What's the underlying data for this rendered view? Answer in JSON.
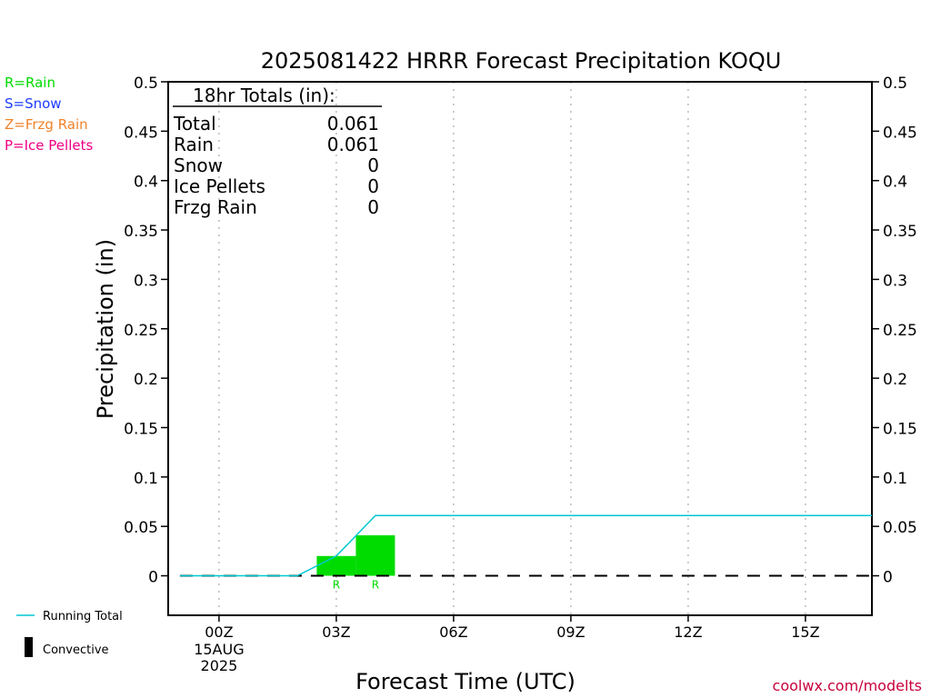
{
  "chart_data": {
    "type": "bar",
    "title": "2025081422 HRRR Forecast Precipitation KOQU",
    "xlabel": "Forecast Time (UTC)",
    "ylabel": "Precipitation (in)",
    "ylim": [
      -0.04,
      0.5
    ],
    "xlim_hours": [
      -1.3,
      16.7
    ],
    "y_ticks": [
      "0",
      "0.05",
      "0.1",
      "0.15",
      "0.2",
      "0.25",
      "0.3",
      "0.35",
      "0.4",
      "0.45",
      "0.5"
    ],
    "y_tick_values": [
      0,
      0.05,
      0.1,
      0.15,
      0.2,
      0.25,
      0.3,
      0.35,
      0.4,
      0.45,
      0.5
    ],
    "x_ticks": [
      {
        "hour": 0,
        "label": "00Z",
        "sub1": "15AUG",
        "sub2": "2025"
      },
      {
        "hour": 3,
        "label": "03Z",
        "sub1": "",
        "sub2": ""
      },
      {
        "hour": 6,
        "label": "06Z",
        "sub1": "",
        "sub2": ""
      },
      {
        "hour": 9,
        "label": "09Z",
        "sub1": "",
        "sub2": ""
      },
      {
        "hour": 12,
        "label": "12Z",
        "sub1": "",
        "sub2": ""
      },
      {
        "hour": 15,
        "label": "15Z",
        "sub1": "",
        "sub2": ""
      }
    ],
    "grid": "vertical dotted",
    "bars": [
      {
        "start_hour": 2.5,
        "end_hour": 3.5,
        "value": 0.02,
        "type_label": "R",
        "color": "#00dc00"
      },
      {
        "start_hour": 3.5,
        "end_hour": 4.5,
        "value": 0.041,
        "type_label": "R",
        "color": "#00dc00"
      }
    ],
    "series": [
      {
        "name": "Running Total",
        "color": "#00c8d2",
        "x": [
          -1,
          2,
          3,
          4,
          16.7
        ],
        "values": [
          0,
          0,
          0.02,
          0.061,
          0.061
        ]
      }
    ],
    "baseline_color": "#000000"
  },
  "totals": {
    "header": "18hr Totals (in):",
    "rows": [
      {
        "label": "Total",
        "value": "0.061"
      },
      {
        "label": "Rain",
        "value": "0.061"
      },
      {
        "label": "Snow",
        "value": "0"
      },
      {
        "label": "Ice Pellets",
        "value": "0"
      },
      {
        "label": "Frzg Rain",
        "value": "0"
      }
    ]
  },
  "type_legend": [
    {
      "label": "R=Rain",
      "color": "#00dc00"
    },
    {
      "label": "S=Snow",
      "color": "#1e3cff"
    },
    {
      "label": "Z=Frzg Rain",
      "color": "#f08228"
    },
    {
      "label": "P=Ice Pellets",
      "color": "#f00082"
    }
  ],
  "bottom_legend": {
    "running_total": "Running Total",
    "convective": "Convective"
  },
  "watermark": "coolwx.com/modelts",
  "colors": {
    "rain": "#00dc00",
    "running_total": "#00c8d2",
    "watermark": "#c8003c"
  }
}
